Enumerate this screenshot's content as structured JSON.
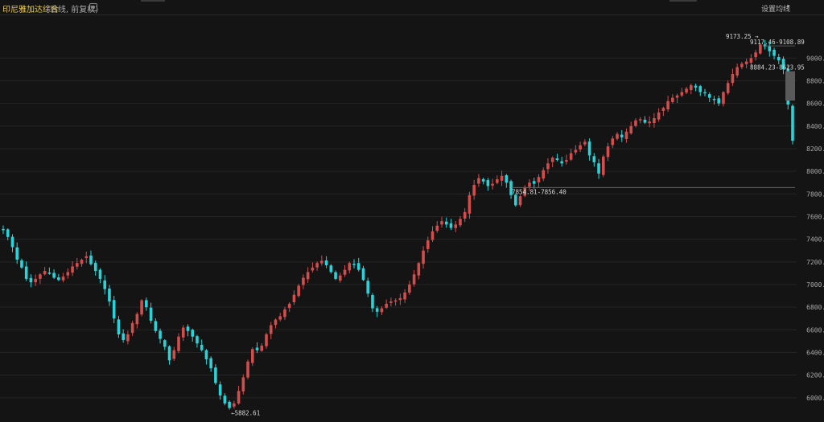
{
  "header": {
    "title": "印尼雅加达综合",
    "subtitle": "(日线, 前复权)",
    "settings_label": "设置均线"
  },
  "colors": {
    "up": "#d34d4d",
    "down": "#2bd3d8",
    "grid": "#242424",
    "background": "#141414"
  },
  "chart_data": {
    "type": "candlestick",
    "title": "印尼雅加达综合",
    "ylim": [
      5800,
      9350
    ],
    "yticks": [
      6000,
      6200,
      6400,
      6600,
      6800,
      7000,
      7200,
      7400,
      7600,
      7800,
      8000,
      8200,
      8400,
      8600,
      8800,
      9000
    ],
    "ytick_labels": [
      "6000.00",
      "6200.00",
      "6400.00",
      "6600.00",
      "6800.00",
      "7000.00",
      "7200.00",
      "7400.00",
      "7600.00",
      "7800.00",
      "8000.00",
      "8200.00",
      "8400.00",
      "8600.00",
      "8800.00",
      "9000.00"
    ],
    "series": [
      {
        "values": [
          7480,
          7420,
          7330,
          7220,
          7150,
          7050,
          7020,
          7050,
          7090,
          7120,
          7100,
          7060,
          7040,
          7070,
          7110,
          7160,
          7190,
          7220,
          7250,
          7180,
          7120,
          7050,
          6960,
          6850,
          6700,
          6560,
          6510,
          6560,
          6660,
          6740,
          6860,
          6800,
          6680,
          6590,
          6520,
          6450,
          6330,
          6420,
          6540,
          6620,
          6590,
          6540,
          6480,
          6420,
          6340,
          6260,
          6130,
          6020,
          5950,
          5910,
          5950,
          6060,
          6180,
          6320,
          6430,
          6420,
          6460,
          6560,
          6640,
          6690,
          6720,
          6780,
          6830,
          6910,
          6990,
          7060,
          7110,
          7150,
          7190,
          7210,
          7170,
          7110,
          7050,
          7080,
          7130,
          7190,
          7180,
          7130,
          7040,
          6920,
          6790,
          6760,
          6790,
          6830,
          6850,
          6860,
          6880,
          6930,
          7000,
          7090,
          7190,
          7300,
          7390,
          7470,
          7520,
          7560,
          7530,
          7500,
          7530,
          7580,
          7640,
          7790,
          7880,
          7940,
          7910,
          7870,
          7890,
          7930,
          7960,
          7900,
          7790,
          7700,
          7780,
          7860,
          7900,
          7890,
          7950,
          8010,
          8070,
          8120,
          8100,
          8070,
          8100,
          8160,
          8190,
          8230,
          8260,
          8140,
          8080,
          7980,
          8130,
          8220,
          8290,
          8330,
          8300,
          8350,
          8400,
          8450,
          8460,
          8430,
          8440,
          8470,
          8520,
          8560,
          8620,
          8650,
          8670,
          8700,
          8730,
          8760,
          8740,
          8700,
          8690,
          8650,
          8630,
          8600,
          8700,
          8780,
          8860,
          8920,
          8950,
          8970,
          9000,
          9050,
          9120,
          9100,
          9060,
          9020,
          8980,
          8900,
          8590,
          8270
        ],
        "open_close": "derived"
      }
    ],
    "annotations": [
      {
        "label": "9173.25",
        "arrow": "→"
      },
      {
        "label": "9117.46-9108.89"
      },
      {
        "label": "8884.23-8623.95"
      },
      {
        "label": "7854.81-7856.40"
      },
      {
        "label": "5882.61",
        "arrow": "←"
      }
    ]
  }
}
